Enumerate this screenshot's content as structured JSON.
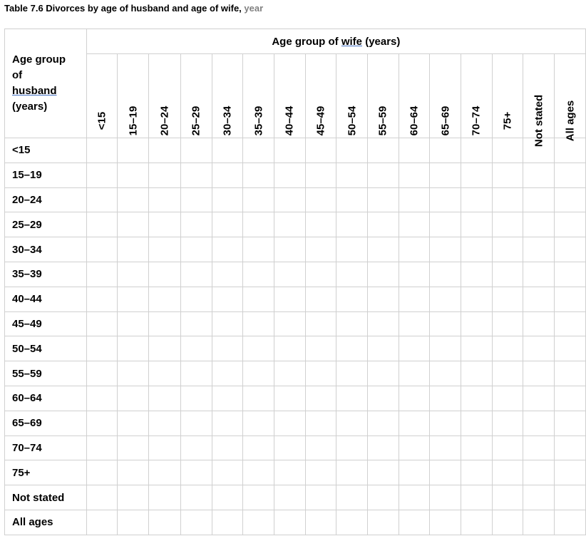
{
  "title": {
    "main": "Table 7.6 Divorces by age of husband and age of wife, ",
    "year": "year"
  },
  "corner": {
    "line1": "Age group",
    "line2": "of",
    "line3": "husband",
    "line4": "(years)"
  },
  "wife_header": {
    "prefix": "Age group of ",
    "word": "wife",
    "suffix": " (years)"
  },
  "columns": [
    "<15",
    "15–19",
    "20–24",
    "25–29",
    "30–34",
    "35–39",
    "40–44",
    "45–49",
    "50–54",
    "55–59",
    "60–64",
    "65–69",
    "70–74",
    "75+",
    "Not stated",
    "All ages"
  ],
  "rows": [
    "<15",
    "15–19",
    "20–24",
    "25–29",
    "30–34",
    "35–39",
    "40–44",
    "45–49",
    "50–54",
    "55–59",
    "60–64",
    "65–69",
    "70–74",
    "75+",
    "Not stated",
    "All ages"
  ]
}
